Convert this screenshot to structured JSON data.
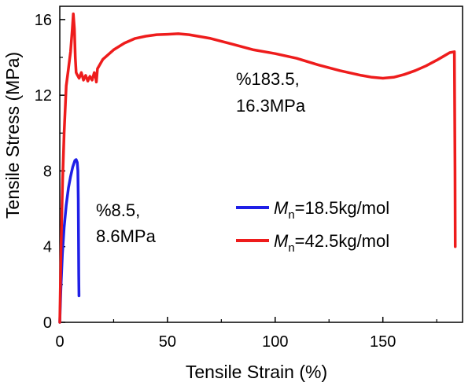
{
  "chart_data": {
    "type": "line",
    "title": "",
    "xlabel": "Tensile Strain (%)",
    "ylabel": "Tensile Stress (MPa)",
    "xlim": [
      0,
      187
    ],
    "ylim": [
      0,
      16.7
    ],
    "xticks": [
      0,
      50,
      100,
      150
    ],
    "xtick_labels": [
      "0",
      "50",
      "100",
      "150"
    ],
    "yticks": [
      0,
      4,
      8,
      12,
      16
    ],
    "ytick_labels": [
      "0",
      "4",
      "8",
      "12",
      "16"
    ],
    "grid": false,
    "legend_position": "lower-right",
    "series": [
      {
        "name": "Mn=18.5kg/mol",
        "legend_symbol": "M",
        "legend_subscript": "n",
        "legend_rest": "=18.5kg/mol",
        "color": "#1f1fe6",
        "x": [
          0,
          0.5,
          1.2,
          2,
          3,
          4,
          5,
          6,
          7,
          7.6,
          8.1,
          8.4,
          8.6,
          8.7,
          8.8,
          8.9
        ],
        "y": [
          0,
          1.8,
          3.6,
          5.0,
          6.2,
          7.1,
          7.7,
          8.2,
          8.55,
          8.6,
          8.45,
          8.0,
          6.5,
          4.5,
          2.5,
          1.4
        ]
      },
      {
        "name": "Mn=42.5kg/mol",
        "legend_symbol": "M",
        "legend_subscript": "n",
        "legend_rest": "=42.5kg/mol",
        "color": "#ee1c1c",
        "x": [
          0,
          0.6,
          1.3,
          2,
          3,
          4,
          5,
          5.8,
          6.3,
          6.8,
          7.2,
          7.6,
          8,
          9,
          10,
          11,
          12,
          13,
          14,
          15,
          16,
          16.5,
          17,
          17.5,
          18,
          20,
          25,
          30,
          35,
          40,
          45,
          50,
          55,
          60,
          65,
          70,
          80,
          90,
          100,
          110,
          120,
          130,
          140,
          145,
          150,
          155,
          160,
          165,
          170,
          175,
          178,
          181,
          183.2,
          183.5,
          183.6
        ],
        "y": [
          0,
          4.0,
          7.5,
          10.0,
          12.5,
          13.4,
          14.3,
          15.5,
          16.3,
          15.5,
          14.0,
          13.2,
          13.1,
          12.9,
          13.2,
          12.8,
          13.05,
          12.75,
          13.0,
          12.8,
          13.2,
          13.05,
          12.7,
          13.4,
          13.5,
          13.9,
          14.4,
          14.75,
          15.0,
          15.12,
          15.2,
          15.22,
          15.25,
          15.2,
          15.1,
          15.0,
          14.7,
          14.4,
          14.2,
          13.95,
          13.6,
          13.3,
          13.05,
          12.95,
          12.9,
          12.95,
          13.1,
          13.3,
          13.55,
          13.85,
          14.05,
          14.25,
          14.3,
          8.0,
          4.0
        ]
      }
    ],
    "annotations": [
      {
        "id": "red",
        "line1": "%183.5,",
        "line2": "16.3MPa"
      },
      {
        "id": "blue",
        "line1": "%8.5,",
        "line2": "8.6MPa"
      }
    ]
  }
}
